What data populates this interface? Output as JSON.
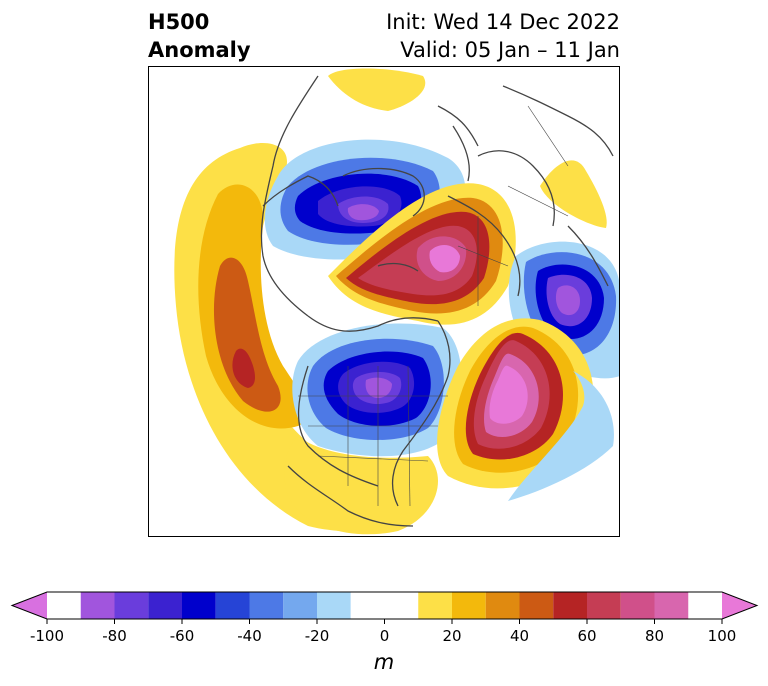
{
  "title": {
    "left_line1": "H500",
    "left_line2": "Anomaly",
    "right_line1": "Init: Wed 14 Dec 2022",
    "right_line2": "Valid: 05 Jan – 11 Jan"
  },
  "colorbar": {
    "unit": "m",
    "range": [
      -100,
      100
    ],
    "levels": [
      -100,
      -90,
      -80,
      -70,
      -60,
      -50,
      -40,
      -30,
      -20,
      -10,
      10,
      20,
      30,
      40,
      50,
      60,
      70,
      80,
      90,
      100
    ],
    "colors": [
      "#d870e0",
      "#a155dd",
      "#6a3ddc",
      "#3b22d0",
      "#0000cc",
      "#2644d6",
      "#4d79e6",
      "#74a8ee",
      "#a9d8f7",
      "#ffffff",
      "#fde047",
      "#f3b90c",
      "#e08a10",
      "#cc5a14",
      "#b52424",
      "#c53d54",
      "#d0508a",
      "#d866ae",
      "#e878d8"
    ],
    "ticks": [
      {
        "value": -100,
        "label": "-100"
      },
      {
        "value": -80,
        "label": "-80"
      },
      {
        "value": -60,
        "label": "-60"
      },
      {
        "value": -40,
        "label": "-40"
      },
      {
        "value": -20,
        "label": "-20"
      },
      {
        "value": 0,
        "label": "0"
      },
      {
        "value": 20,
        "label": "20"
      },
      {
        "value": 40,
        "label": "40"
      },
      {
        "value": 60,
        "label": "60"
      },
      {
        "value": 80,
        "label": "80"
      },
      {
        "value": 100,
        "label": "100"
      }
    ]
  }
}
